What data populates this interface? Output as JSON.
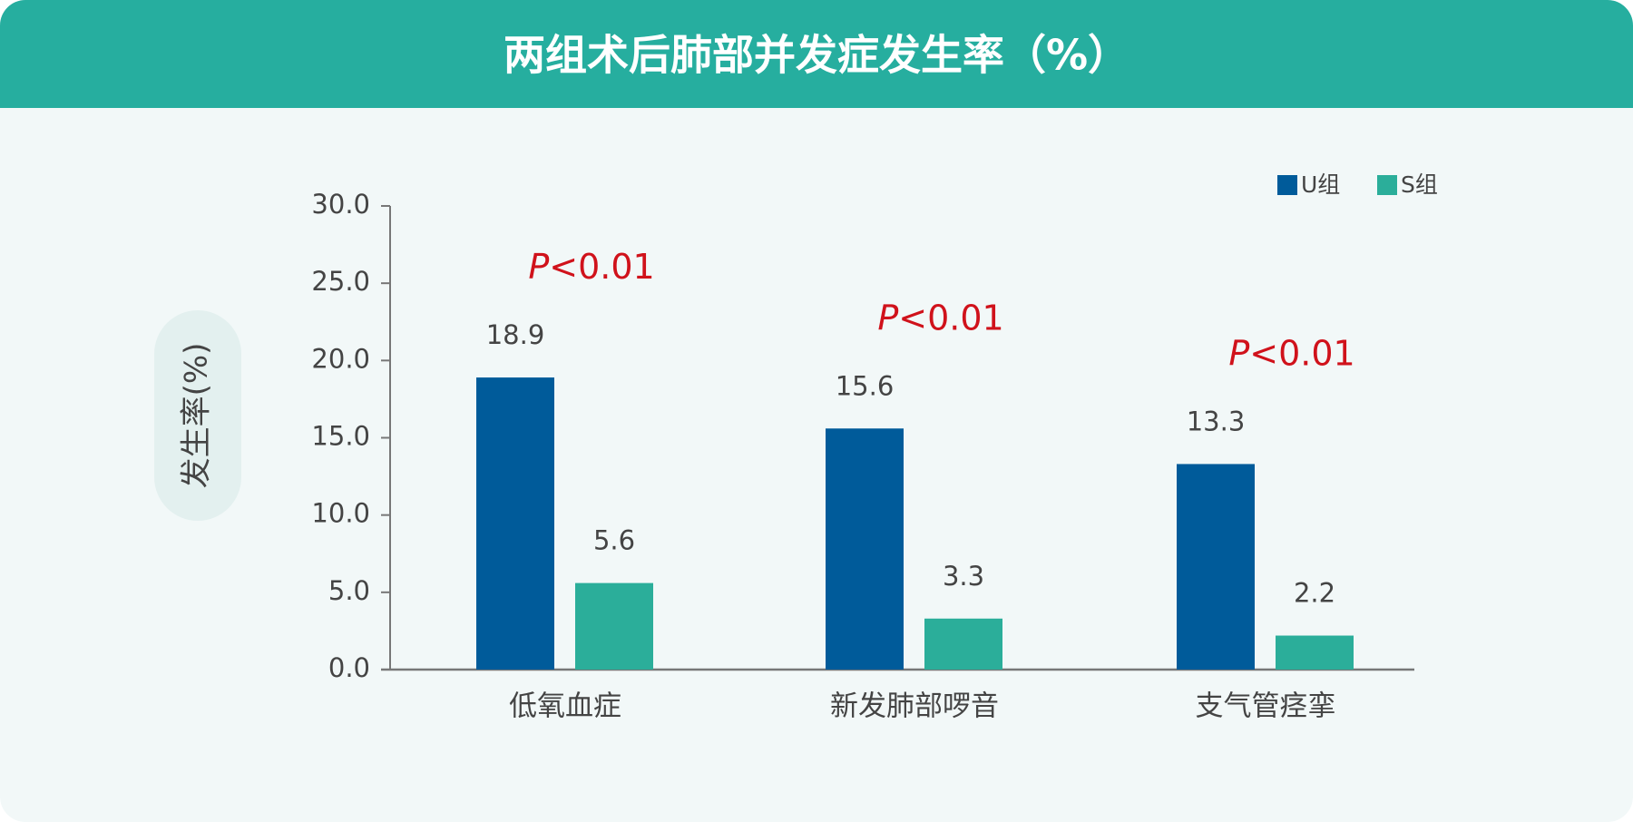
{
  "chart_data": {
    "type": "bar",
    "title": "两组术后肺部并发症发生率（%）",
    "ylabel": "发生率(%)",
    "categories": [
      "低氧血症",
      "新发肺部啰音",
      "支气管痉挛"
    ],
    "series": [
      {
        "name": "U组",
        "color": "#005b9a",
        "values": [
          18.9,
          15.6,
          13.3
        ]
      },
      {
        "name": "S组",
        "color": "#2bae9a",
        "values": [
          5.6,
          3.3,
          2.2
        ]
      }
    ],
    "annotations": [
      {
        "symbol": "P",
        "text": "<0.01"
      },
      {
        "symbol": "P",
        "text": "<0.01"
      },
      {
        "symbol": "P",
        "text": "<0.01"
      }
    ],
    "ylim": [
      0,
      30
    ],
    "yticks": [
      {
        "value": 0,
        "label": "0.0"
      },
      {
        "value": 5,
        "label": "5.0"
      },
      {
        "value": 10,
        "label": "10.0"
      },
      {
        "value": 15,
        "label": "15.0"
      },
      {
        "value": 20,
        "label": "20.0"
      },
      {
        "value": 25,
        "label": "25.0"
      },
      {
        "value": 30,
        "label": "30.0"
      }
    ],
    "grid": false,
    "legend": "top-right"
  }
}
